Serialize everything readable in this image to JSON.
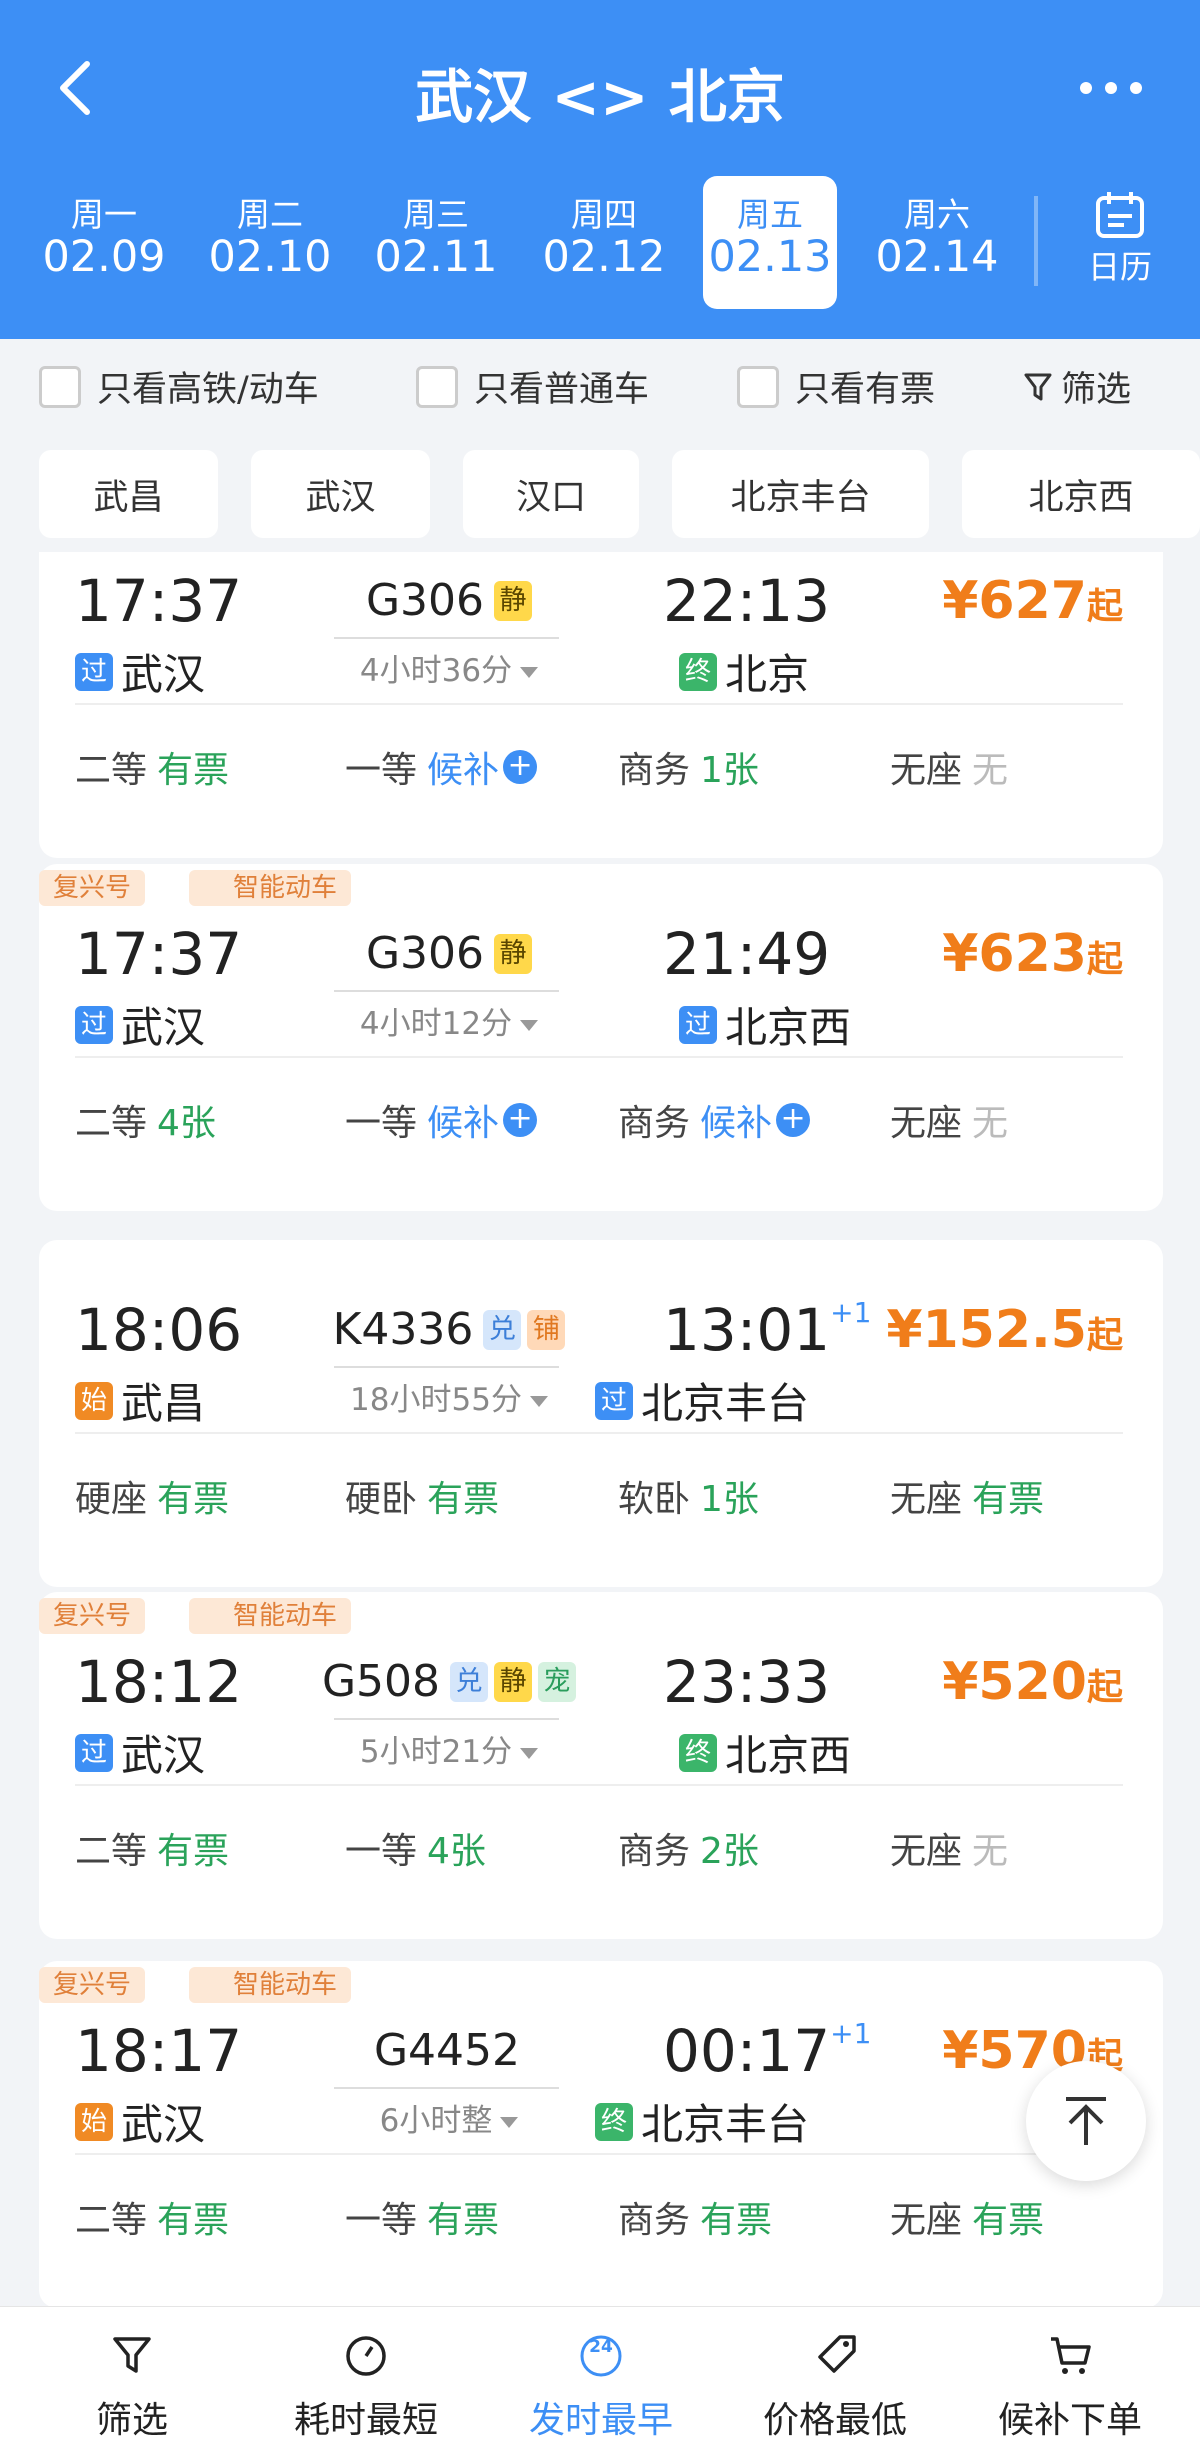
{
  "header": {
    "title": "武汉 <> 北京",
    "calendar": "日历",
    "dates": [
      {
        "weekday": "周一",
        "date": "02.09"
      },
      {
        "weekday": "周二",
        "date": "02.10"
      },
      {
        "weekday": "周三",
        "date": "02.11"
      },
      {
        "weekday": "周四",
        "date": "02.12"
      },
      {
        "weekday": "周五",
        "date": "02.13"
      },
      {
        "weekday": "周六",
        "date": "02.14"
      }
    ]
  },
  "filters": {
    "checkboxes": [
      "只看高铁/动车",
      "只看普通车",
      "只看有票"
    ],
    "button": "筛选"
  },
  "stations": [
    "武昌",
    "武汉",
    "汉口",
    "北京丰台",
    "北京西"
  ],
  "trains": [
    {
      "badges": [],
      "depart": "17:37",
      "from_tag": {
        "text": "过",
        "color": "#3d8ff5"
      },
      "from": "武汉",
      "number": "G306",
      "tags": [
        {
          "text": "静",
          "bg": "#ffd84a",
          "color": "#5a4600"
        }
      ],
      "duration": "4小时36分",
      "arrive": "22:13",
      "arrive_day": null,
      "to_tag": {
        "text": "终",
        "color": "#3bb56a"
      },
      "to": "北京",
      "price": "¥627",
      "price_suffix": "起",
      "seats": [
        {
          "class": "二等",
          "status": "有票",
          "color": "#2aa35a"
        },
        {
          "class": "一等",
          "status": "候补",
          "color": "#3d8ff5",
          "icon": "+"
        },
        {
          "class": "商务",
          "status": "1张",
          "color": "#2aa35a"
        },
        {
          "class": "无座",
          "status": "无",
          "color": "#bbbbbb"
        }
      ]
    },
    {
      "badges": [
        "复兴号",
        "智能动车"
      ],
      "depart": "17:37",
      "from_tag": {
        "text": "过",
        "color": "#3d8ff5"
      },
      "from": "武汉",
      "number": "G306",
      "tags": [
        {
          "text": "静",
          "bg": "#ffd84a",
          "color": "#5a4600"
        }
      ],
      "duration": "4小时12分",
      "arrive": "21:49",
      "arrive_day": null,
      "to_tag": {
        "text": "过",
        "color": "#3d8ff5"
      },
      "to": "北京西",
      "price": "¥623",
      "price_suffix": "起",
      "seats": [
        {
          "class": "二等",
          "status": "4张",
          "color": "#2aa35a"
        },
        {
          "class": "一等",
          "status": "候补",
          "color": "#3d8ff5",
          "icon": "+"
        },
        {
          "class": "商务",
          "status": "候补",
          "color": "#3d8ff5",
          "icon": "+"
        },
        {
          "class": "无座",
          "status": "无",
          "color": "#bbbbbb"
        }
      ]
    },
    {
      "badges": [],
      "depart": "18:06",
      "from_tag": {
        "text": "始",
        "color": "#f08a24"
      },
      "from": "武昌",
      "number": "K4336",
      "tags": [
        {
          "text": "兑",
          "bg": "#d5e6fb",
          "color": "#3d7fd8"
        },
        {
          "text": "铺",
          "bg": "#ffd9b8",
          "color": "#e07820"
        }
      ],
      "duration": "18小时55分",
      "arrive": "13:01",
      "arrive_day": "+1",
      "to_tag": {
        "text": "过",
        "color": "#3d8ff5"
      },
      "to": "北京丰台",
      "price": "¥152.5",
      "price_suffix": "起",
      "seats": [
        {
          "class": "硬座",
          "status": "有票",
          "color": "#2aa35a"
        },
        {
          "class": "硬卧",
          "status": "有票",
          "color": "#2aa35a"
        },
        {
          "class": "软卧",
          "status": "1张",
          "color": "#2aa35a"
        },
        {
          "class": "无座",
          "status": "有票",
          "color": "#2aa35a"
        }
      ]
    },
    {
      "badges": [
        "复兴号",
        "智能动车"
      ],
      "depart": "18:12",
      "from_tag": {
        "text": "过",
        "color": "#3d8ff5"
      },
      "from": "武汉",
      "number": "G508",
      "tags": [
        {
          "text": "兑",
          "bg": "#d5e6fb",
          "color": "#3d7fd8"
        },
        {
          "text": "静",
          "bg": "#ffd84a",
          "color": "#5a4600"
        },
        {
          "text": "宠",
          "bg": "#d5f1df",
          "color": "#2a9d5c"
        }
      ],
      "duration": "5小时21分",
      "arrive": "23:33",
      "arrive_day": null,
      "to_tag": {
        "text": "终",
        "color": "#3bb56a"
      },
      "to": "北京西",
      "price": "¥520",
      "price_suffix": "起",
      "seats": [
        {
          "class": "二等",
          "status": "有票",
          "color": "#2aa35a"
        },
        {
          "class": "一等",
          "status": "4张",
          "color": "#2aa35a"
        },
        {
          "class": "商务",
          "status": "2张",
          "color": "#2aa35a"
        },
        {
          "class": "无座",
          "status": "无",
          "color": "#bbbbbb"
        }
      ]
    },
    {
      "badges": [
        "复兴号",
        "智能动车"
      ],
      "depart": "18:17",
      "from_tag": {
        "text": "始",
        "color": "#f08a24"
      },
      "from": "武汉",
      "number": "G4452",
      "tags": [],
      "duration": "6小时整",
      "arrive": "00:17",
      "arrive_day": "+1",
      "to_tag": {
        "text": "终",
        "color": "#3bb56a"
      },
      "to": "北京丰台",
      "price": "¥570",
      "price_suffix": "起",
      "seats": [
        {
          "class": "二等",
          "status": "有票",
          "color": "#2aa35a"
        },
        {
          "class": "一等",
          "status": "有票",
          "color": "#2aa35a"
        },
        {
          "class": "商务",
          "status": "有票",
          "color": "#2aa35a"
        },
        {
          "class": "无座",
          "status": "有票",
          "color": "#2aa35a"
        }
      ]
    }
  ],
  "bottom_nav": [
    {
      "label": "筛选"
    },
    {
      "label": "耗时最短"
    },
    {
      "label": "发时最早",
      "icon_text": "24"
    },
    {
      "label": "价格最低"
    },
    {
      "label": "候补下单"
    }
  ]
}
